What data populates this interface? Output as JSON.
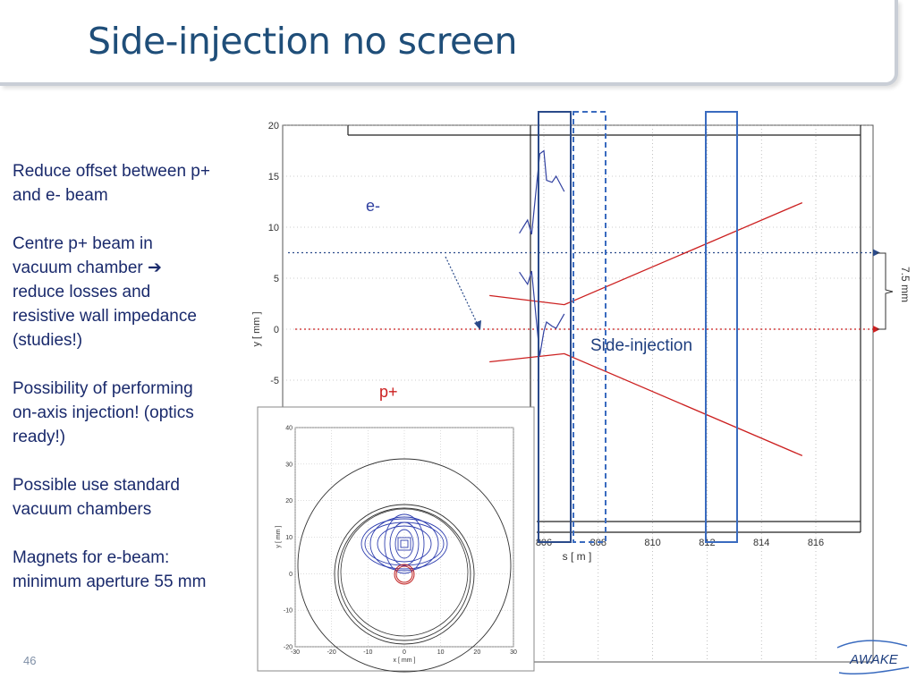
{
  "title": "Side-injection no screen",
  "bullets": [
    {
      "lines": [
        "Reduce offset between p+",
        "and e- beam"
      ]
    },
    {
      "lines": [
        "Centre p+ beam in",
        "vacuum chamber ➔",
        "reduce losses and",
        "resistive wall impedance",
        "(studies!)"
      ]
    },
    {
      "lines": [
        "Possibility of performing",
        "on-axis injection! (optics",
        "ready!)"
      ]
    },
    {
      "lines": [
        "Possible use standard",
        "vacuum chambers"
      ]
    },
    {
      "lines": [
        "Magnets for e-beam:",
        "minimum aperture 55 mm"
      ]
    }
  ],
  "slide_number": "46",
  "logo_text": "AWAKE",
  "colors": {
    "title": "#1f4e79",
    "text": "#1a2a6c",
    "proton": "#cc2020",
    "electron": "#3040a0",
    "box": "#3a6bbf"
  },
  "chart_data": [
    {
      "type": "line",
      "xlabel": "s [ m ]",
      "ylabel": "y  [ mm ]",
      "xlim": [
        804.0,
        816.2
      ],
      "ylim": [
        -20,
        20.3
      ],
      "xticks": [
        806,
        808,
        810,
        812,
        814,
        816
      ],
      "yticks": [
        20,
        15,
        10,
        5,
        0,
        -5
      ],
      "series": [
        {
          "role": "p-upper",
          "color": "#cc2020",
          "x": [
            804.0,
            806.75,
            815.5
          ],
          "y": [
            3.3,
            2.4,
            12.4
          ]
        },
        {
          "role": "p-lower",
          "color": "#cc2020",
          "x": [
            804.0,
            806.75,
            815.5
          ],
          "y": [
            -3.2,
            -2.4,
            -12.4
          ]
        },
        {
          "role": "e-upper",
          "color": "#3040a0",
          "x": [
            805.1,
            805.4,
            805.55,
            805.85,
            806.0,
            806.1,
            806.3,
            806.45,
            806.75
          ],
          "y": [
            9.4,
            10.7,
            9.3,
            17.2,
            17.5,
            14.6,
            14.4,
            15.0,
            13.5
          ]
        },
        {
          "role": "e-lower",
          "color": "#3040a0",
          "x": [
            805.1,
            805.4,
            805.55,
            805.85,
            806.0,
            806.1,
            806.3,
            806.45,
            806.75
          ],
          "y": [
            5.6,
            4.4,
            5.7,
            -2.6,
            -0.2,
            0.7,
            0.3,
            0.1,
            1.5
          ]
        }
      ],
      "annotations": {
        "e_label": "e-",
        "p_label": "p+",
        "injection_label": "Side-injection",
        "offset_label": "7.5 mm",
        "offset_value": 7.5,
        "electron_reference_y": 7.5,
        "proton_reference_y": 0.0
      }
    },
    {
      "type": "scatter",
      "xlabel": "x [ mm ]",
      "ylabel": "y [ mm ]",
      "xlim": [
        -30,
        30
      ],
      "ylim": [
        -20,
        40
      ],
      "xticks": [
        -30,
        -20,
        -10,
        0,
        10,
        20,
        30
      ],
      "yticks": [
        40,
        30,
        20,
        10,
        0,
        -10,
        -20
      ]
    }
  ]
}
